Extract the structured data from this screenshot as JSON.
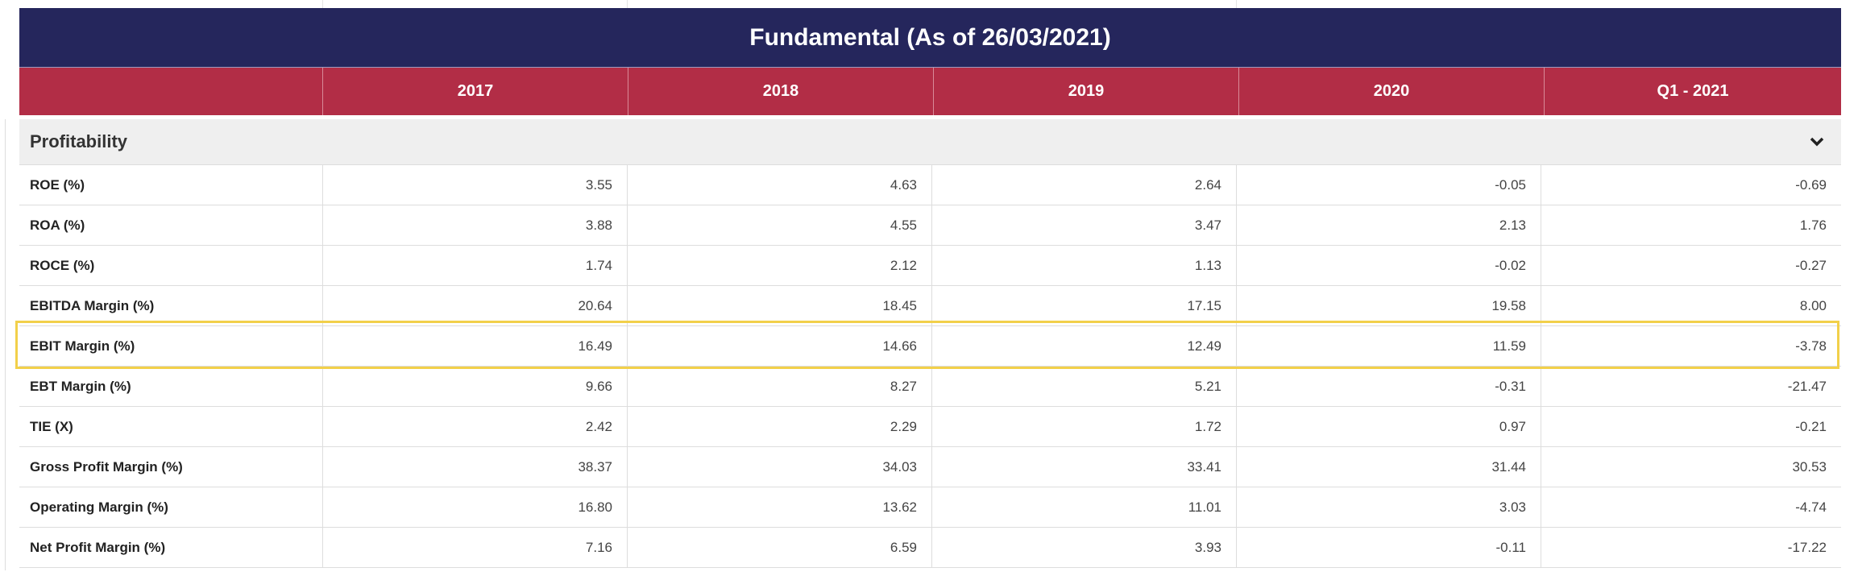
{
  "title": "Fundamental (As of 26/03/2021)",
  "columns": [
    "2017",
    "2018",
    "2019",
    "2020",
    "Q1 - 2021"
  ],
  "section": "Profitability",
  "highlight_color": "#f2d04a",
  "rows": [
    {
      "label": "ROE (%)",
      "values": [
        "3.55",
        "4.63",
        "2.64",
        "-0.05",
        "-0.69"
      ]
    },
    {
      "label": "ROA (%)",
      "values": [
        "3.88",
        "4.55",
        "3.47",
        "2.13",
        "1.76"
      ]
    },
    {
      "label": "ROCE (%)",
      "values": [
        "1.74",
        "2.12",
        "1.13",
        "-0.02",
        "-0.27"
      ]
    },
    {
      "label": "EBITDA Margin (%)",
      "values": [
        "20.64",
        "18.45",
        "17.15",
        "19.58",
        "8.00"
      ]
    },
    {
      "label": "EBIT Margin (%)",
      "values": [
        "16.49",
        "14.66",
        "12.49",
        "11.59",
        "-3.78"
      ]
    },
    {
      "label": "EBT Margin (%)",
      "values": [
        "9.66",
        "8.27",
        "5.21",
        "-0.31",
        "-21.47"
      ]
    },
    {
      "label": "TIE (X)",
      "values": [
        "2.42",
        "2.29",
        "1.72",
        "0.97",
        "-0.21"
      ]
    },
    {
      "label": "Gross Profit Margin (%)",
      "values": [
        "38.37",
        "34.03",
        "33.41",
        "31.44",
        "30.53"
      ]
    },
    {
      "label": "Operating Margin (%)",
      "values": [
        "16.80",
        "13.62",
        "11.01",
        "3.03",
        "-4.74"
      ]
    },
    {
      "label": "Net Profit Margin (%)",
      "values": [
        "7.16",
        "6.59",
        "3.93",
        "-0.11",
        "-17.22"
      ]
    }
  ]
}
